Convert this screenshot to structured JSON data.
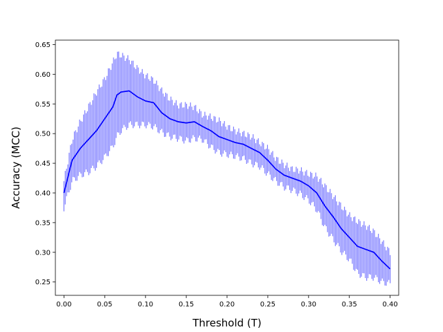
{
  "chart_data": {
    "type": "line",
    "title": "",
    "xlabel": "Threshold (T)",
    "ylabel": "Accuracy (MCC)",
    "xlim": [
      -0.0105,
      0.4105
    ],
    "ylim": [
      0.2275,
      0.6575
    ],
    "xticks": [
      "0.00",
      "0.05",
      "0.10",
      "0.15",
      "0.20",
      "0.25",
      "0.30",
      "0.35",
      "0.40"
    ],
    "yticks": [
      "0.25",
      "0.30",
      "0.35",
      "0.40",
      "0.45",
      "0.50",
      "0.55",
      "0.60",
      "0.65"
    ],
    "grid": false,
    "legend": "none",
    "line_color": "#0000ff",
    "band_color": "#7b7bff",
    "series": [
      {
        "x": [
          0.0,
          0.01,
          0.02,
          0.03,
          0.04,
          0.05,
          0.06,
          0.065,
          0.07,
          0.08,
          0.09,
          0.1,
          0.11,
          0.12,
          0.13,
          0.14,
          0.15,
          0.16,
          0.17,
          0.18,
          0.19,
          0.2,
          0.21,
          0.22,
          0.23,
          0.24,
          0.25,
          0.26,
          0.27,
          0.28,
          0.29,
          0.3,
          0.31,
          0.32,
          0.33,
          0.34,
          0.35,
          0.36,
          0.37,
          0.38,
          0.39,
          0.4
        ],
        "y": [
          0.4,
          0.455,
          0.475,
          0.49,
          0.505,
          0.525,
          0.545,
          0.565,
          0.57,
          0.572,
          0.562,
          0.555,
          0.552,
          0.535,
          0.525,
          0.52,
          0.518,
          0.52,
          0.512,
          0.505,
          0.495,
          0.49,
          0.485,
          0.482,
          0.475,
          0.468,
          0.455,
          0.44,
          0.43,
          0.425,
          0.42,
          0.412,
          0.4,
          0.378,
          0.36,
          0.34,
          0.325,
          0.31,
          0.305,
          0.3,
          0.285,
          0.272
        ],
        "upper": [
          0.42,
          0.49,
          0.52,
          0.545,
          0.57,
          0.592,
          0.62,
          0.635,
          0.632,
          0.625,
          0.61,
          0.598,
          0.59,
          0.572,
          0.558,
          0.548,
          0.548,
          0.545,
          0.532,
          0.528,
          0.522,
          0.512,
          0.505,
          0.5,
          0.495,
          0.485,
          0.475,
          0.458,
          0.448,
          0.44,
          0.438,
          0.432,
          0.428,
          0.412,
          0.395,
          0.378,
          0.362,
          0.352,
          0.345,
          0.335,
          0.318,
          0.3
        ],
        "lower": [
          0.375,
          0.42,
          0.43,
          0.435,
          0.445,
          0.46,
          0.478,
          0.495,
          0.505,
          0.515,
          0.515,
          0.515,
          0.512,
          0.502,
          0.495,
          0.492,
          0.488,
          0.492,
          0.49,
          0.478,
          0.468,
          0.465,
          0.462,
          0.458,
          0.45,
          0.445,
          0.432,
          0.42,
          0.41,
          0.405,
          0.398,
          0.388,
          0.372,
          0.342,
          0.322,
          0.302,
          0.288,
          0.265,
          0.258,
          0.258,
          0.25,
          0.247
        ]
      }
    ]
  }
}
